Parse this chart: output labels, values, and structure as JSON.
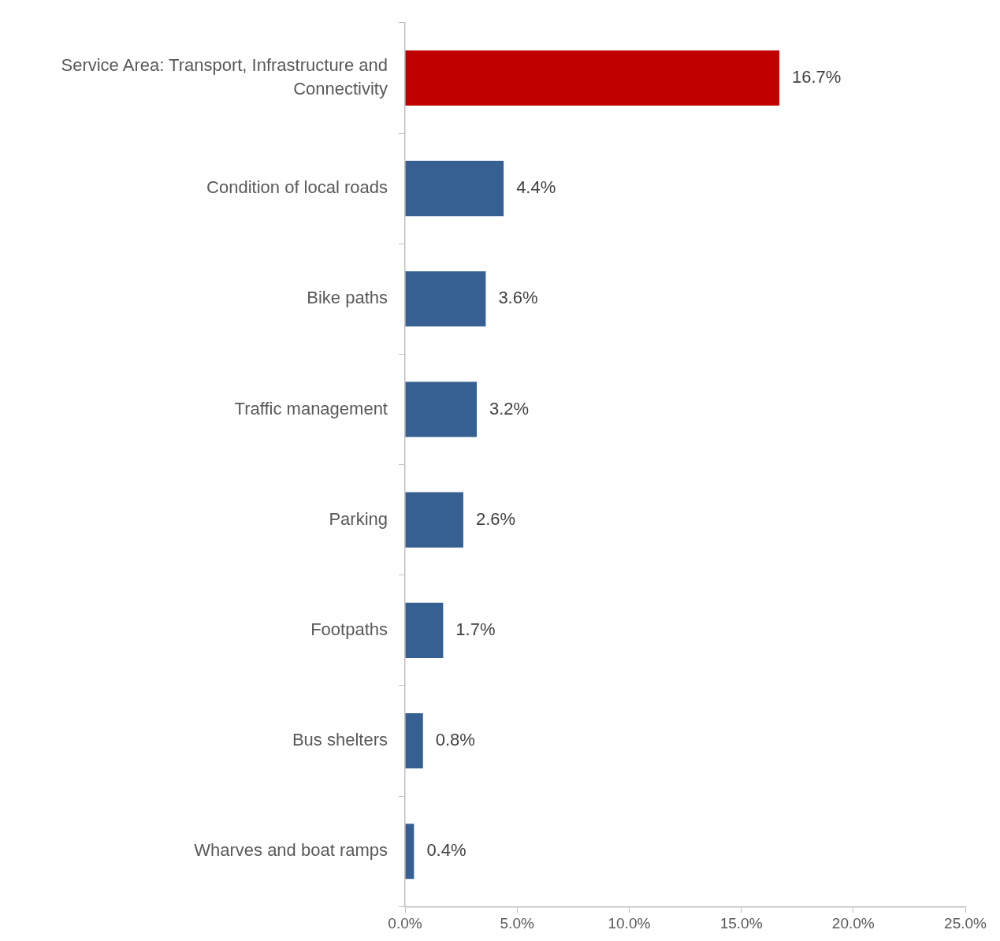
{
  "chart_data": {
    "type": "bar",
    "orientation": "horizontal",
    "categories": [
      "Service Area: Transport, Infrastructure and Connectivity",
      "Condition of local roads",
      "Bike paths",
      "Traffic management",
      "Parking",
      "Footpaths",
      "Bus shelters",
      "Wharves and boat ramps"
    ],
    "values": [
      16.7,
      4.4,
      3.6,
      3.2,
      2.6,
      1.7,
      0.8,
      0.4
    ],
    "colors": [
      "#c00000",
      "#366092",
      "#366092",
      "#366092",
      "#366092",
      "#366092",
      "#366092",
      "#366092"
    ],
    "value_labels": [
      "16.7%",
      "4.4%",
      "3.6%",
      "3.2%",
      "2.6%",
      "1.7%",
      "0.8%",
      "0.4%"
    ],
    "xlim": [
      0,
      25
    ],
    "xticks": [
      {
        "value": 0,
        "label": "0.0%"
      },
      {
        "value": 5,
        "label": "5.0%"
      },
      {
        "value": 10,
        "label": "10.0%"
      },
      {
        "value": 15,
        "label": "15.0%"
      },
      {
        "value": 20,
        "label": "20.0%"
      },
      {
        "value": 25,
        "label": "25.0%"
      }
    ],
    "grid": false,
    "legend": false
  }
}
